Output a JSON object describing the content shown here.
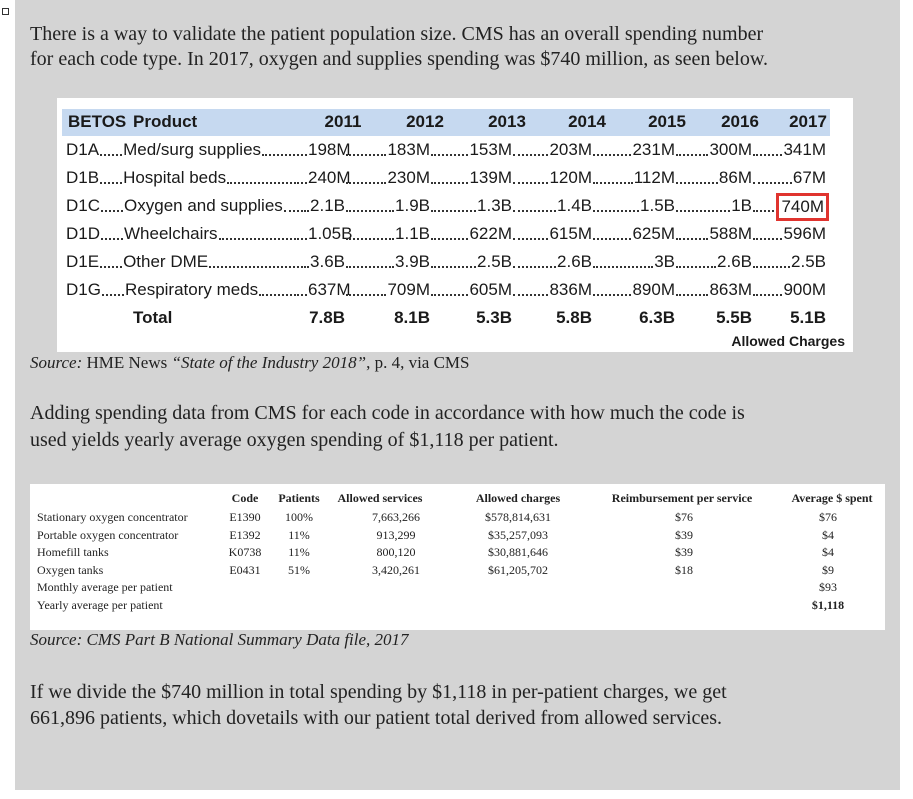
{
  "intro": {
    "lines": [
      "There is a way to validate the patient population size. CMS has an overall spending number",
      "for each code type. In 2017, oxygen and supplies spending was $740 million, as seen below."
    ]
  },
  "betos_table": {
    "header": {
      "code": "BETOS",
      "product": "Product",
      "years": [
        "2011",
        "2012",
        "2013",
        "2014",
        "2015",
        "2016",
        "2017"
      ]
    },
    "rows": [
      {
        "code": "D1A",
        "product": "Med/surg supplies",
        "values": [
          "198M",
          "183M",
          "153M",
          "203M",
          "231M",
          "300M",
          "341M"
        ]
      },
      {
        "code": "D1B",
        "product": "Hospital beds",
        "values": [
          "240M",
          "230M",
          "139M",
          "120M",
          "112M",
          "86M",
          "67M"
        ]
      },
      {
        "code": "D1C",
        "product": "Oxygen and supplies",
        "values": [
          "2.1B",
          "1.9B",
          "1.3B",
          "1.4B",
          "1.5B",
          "1B",
          "740M"
        ]
      },
      {
        "code": "D1D",
        "product": "Wheelchairs",
        "values": [
          "1.05B",
          "1.1B",
          "622M",
          "615M",
          "625M",
          "588M",
          "596M"
        ]
      },
      {
        "code": "D1E",
        "product": "Other DME",
        "values": [
          "3.6B",
          "3.9B",
          "2.5B",
          "2.6B",
          "3B",
          "2.6B",
          "2.5B"
        ]
      },
      {
        "code": "D1G",
        "product": "Respiratory meds",
        "values": [
          "637M",
          "709M",
          "605M",
          "836M",
          "890M",
          "863M",
          "900M"
        ]
      }
    ],
    "total": {
      "label": "Total",
      "values": [
        "7.8B",
        "8.1B",
        "5.3B",
        "5.8B",
        "6.3B",
        "5.5B",
        "5.1B"
      ]
    },
    "highlight": {
      "row": 2,
      "col": 6
    },
    "caption": "Allowed Charges"
  },
  "source1": {
    "label": "Source:",
    "publisher": "HME News",
    "title": "“State of the Industry 2018”",
    "rest": ", p. 4, via CMS"
  },
  "middle": {
    "lines": [
      "Adding spending data from CMS for each code in accordance with how much the code is",
      "used yields yearly average oxygen spending of $1,118 per patient."
    ]
  },
  "oxygen_table": {
    "headers": [
      "Code",
      "Patients",
      "Allowed services",
      "Allowed charges",
      "Reimbursement per service",
      "Average $ spent"
    ],
    "rows": [
      [
        "Stationary oxygen concentrator",
        "E1390",
        "100%",
        "7,663,266",
        "$578,814,631",
        "$76",
        "$76"
      ],
      [
        "Portable oxygen concentrator",
        "E1392",
        "11%",
        "913,299",
        "$35,257,093",
        "$39",
        "$4"
      ],
      [
        "Homefill tanks",
        "K0738",
        "11%",
        "800,120",
        "$30,881,646",
        "$39",
        "$4"
      ],
      [
        "Oxygen tanks",
        "E0431",
        "51%",
        "3,420,261",
        "$61,205,702",
        "$18",
        "$9"
      ]
    ],
    "summary": [
      [
        "Monthly average per patient",
        "$93"
      ],
      [
        "Yearly average per patient",
        "$1,118"
      ]
    ]
  },
  "source2": "Source: CMS Part B National Summary Data file, 2017",
  "conclusion": {
    "lines": [
      "If we divide the $740 million in total spending by $1,118 in per-patient charges, we get",
      "661,896 patients, which dovetails with our patient total derived from allowed services."
    ]
  }
}
